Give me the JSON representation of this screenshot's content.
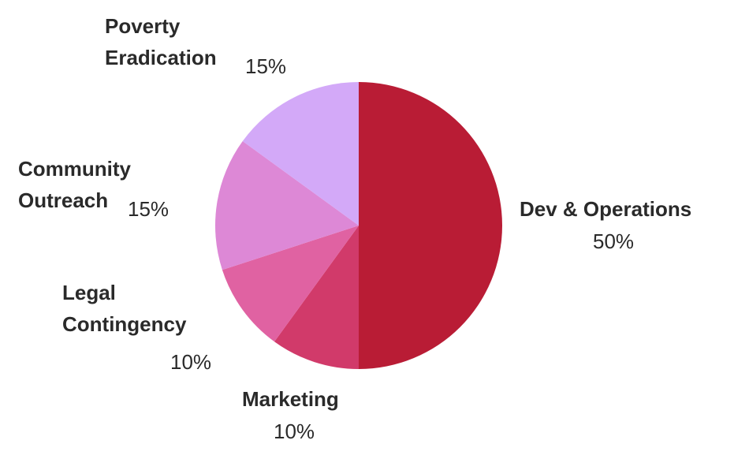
{
  "chart_data": {
    "type": "pie",
    "title": "",
    "slices": [
      {
        "label": "Dev & Operations",
        "value": 50,
        "display": "50%",
        "color": "#b91c35"
      },
      {
        "label": "Marketing",
        "value": 10,
        "display": "10%",
        "color": "#d13a6a"
      },
      {
        "label": "Legal\nContingency",
        "value": 10,
        "display": "10%",
        "color": "#e062a2"
      },
      {
        "label": "Community\nOutreach",
        "value": 15,
        "display": "15%",
        "color": "#dd88d6"
      },
      {
        "label": "Poverty\nEradication",
        "value": 15,
        "display": "15%",
        "color": "#d3a9f8"
      }
    ],
    "start_angle": "12 o'clock",
    "direction": "clockwise"
  }
}
